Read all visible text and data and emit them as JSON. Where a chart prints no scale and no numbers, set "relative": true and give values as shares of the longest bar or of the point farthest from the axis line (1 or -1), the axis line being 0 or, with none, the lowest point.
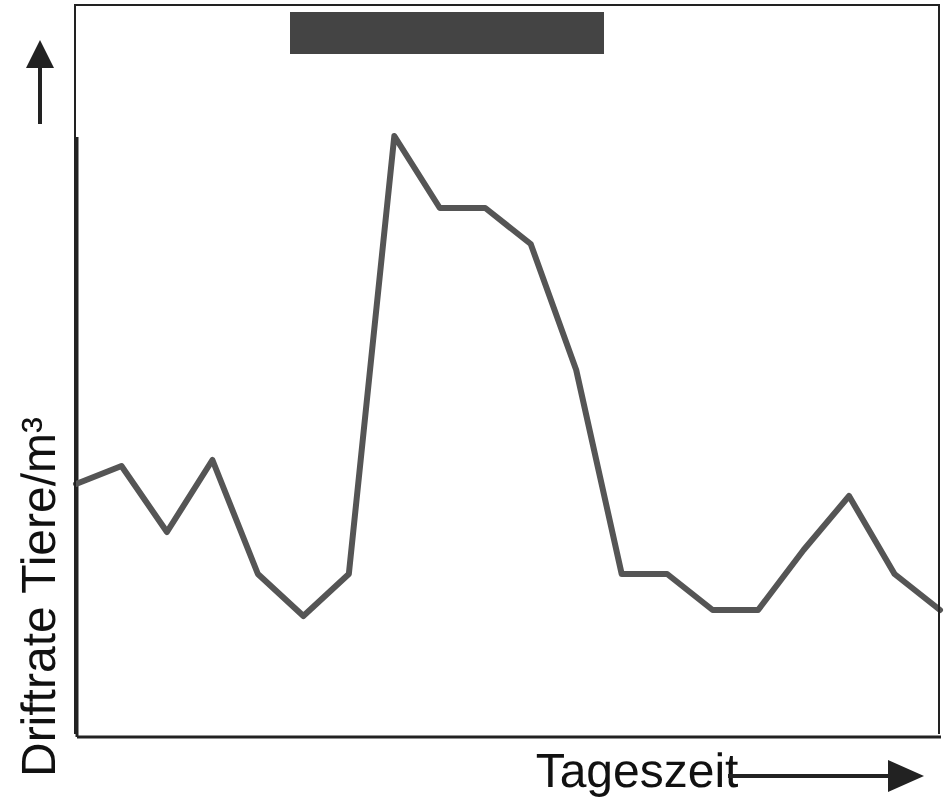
{
  "chart_data": {
    "type": "line",
    "relative": true,
    "xlabel": "Tageszeit",
    "ylabel": "Driftrate Tiere/m³",
    "categories": [
      null,
      null,
      null,
      null,
      null,
      null,
      null,
      null,
      null,
      null,
      null,
      null,
      null,
      null,
      null,
      null,
      null,
      null,
      null,
      null
    ],
    "series": [
      {
        "color": "#555555",
        "values": [
          0.42,
          0.45,
          0.34,
          0.46,
          0.27,
          0.2,
          0.27,
          1,
          0.88,
          0.88,
          0.82,
          0.61,
          0.27,
          0.27,
          0.21,
          0.21,
          0.31,
          0.4,
          0.27,
          0.21
        ]
      }
    ],
    "tick_labels": false,
    "grid": false,
    "marker": "none",
    "line_style": "solid"
  }
}
